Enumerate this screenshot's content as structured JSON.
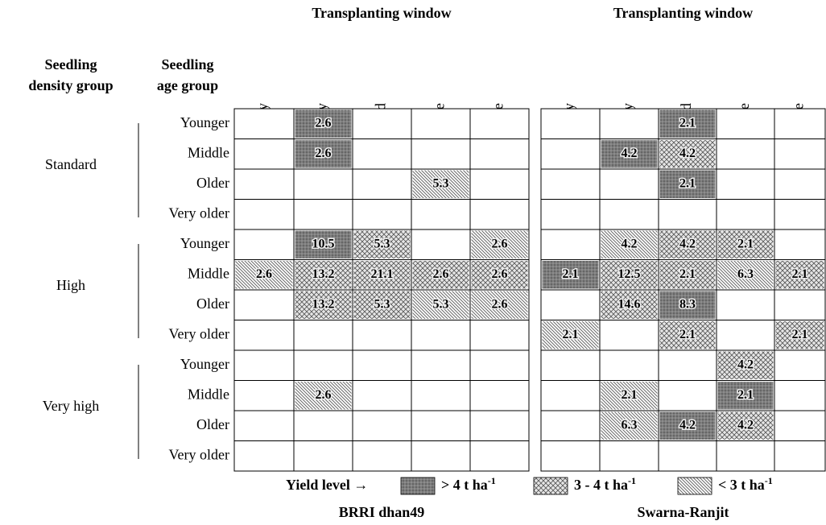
{
  "header": {
    "density_label": [
      "Seedling",
      "density group"
    ],
    "age_label": [
      "Seedling",
      "age group"
    ]
  },
  "groups": [
    {
      "name": "Standard",
      "ages": [
        "Younger",
        "Middle",
        "Older",
        "Very older"
      ]
    },
    {
      "name": "High",
      "ages": [
        "Younger",
        "Middle",
        "Older",
        "Very older"
      ]
    },
    {
      "name": "Very high",
      "ages": [
        "Younger",
        "Middle",
        "Older",
        "Very older"
      ]
    }
  ],
  "tables": [
    {
      "title": "Transplanting window",
      "name": "BRRI dhan49",
      "columns": [
        "Very early",
        "Early",
        "Mid",
        "Late",
        "Very late"
      ],
      "rows": [
        [
          null,
          {
            "text": "2.6",
            "level": 0
          },
          null,
          null,
          null
        ],
        [
          null,
          {
            "text": "2.6",
            "level": 0
          },
          null,
          null,
          null
        ],
        [
          null,
          null,
          null,
          {
            "text": "5.3",
            "level": 2
          },
          null
        ],
        [
          null,
          null,
          null,
          null,
          null
        ],
        [
          null,
          {
            "text": "10.5",
            "level": 0
          },
          {
            "text": "5.3",
            "level": 1
          },
          null,
          {
            "text": "2.6",
            "level": 2
          }
        ],
        [
          {
            "text": "2.6",
            "level": 2
          },
          {
            "text": "13.2",
            "level": 1
          },
          {
            "text": "21.1",
            "level": 1
          },
          {
            "text": "2.6",
            "level": 1
          },
          {
            "text": "2.6",
            "level": 1
          }
        ],
        [
          null,
          {
            "text": "13.2",
            "level": 1
          },
          {
            "text": "5.3",
            "level": 1
          },
          {
            "text": "5.3",
            "level": 2
          },
          {
            "text": "2.6",
            "level": 2
          }
        ],
        [
          null,
          null,
          null,
          null,
          null
        ],
        [
          null,
          null,
          null,
          null,
          null
        ],
        [
          null,
          {
            "text": "2.6",
            "level": 2
          },
          null,
          null,
          null
        ],
        [
          null,
          null,
          null,
          null,
          null
        ],
        [
          null,
          null,
          null,
          null,
          null
        ]
      ]
    },
    {
      "title": "Transplanting window",
      "name": "Swarna-Ranjit",
      "columns": [
        "Very early",
        "Early",
        "Mid",
        "Late",
        "Very late"
      ],
      "rows": [
        [
          null,
          null,
          {
            "text": "2.1",
            "level": 0
          },
          null,
          null
        ],
        [
          null,
          {
            "text": "4.2",
            "level": 0
          },
          {
            "text": "4.2",
            "level": 1
          },
          null,
          null
        ],
        [
          null,
          null,
          {
            "text": "2.1",
            "level": 0
          },
          null,
          null
        ],
        [
          null,
          null,
          null,
          null,
          null
        ],
        [
          null,
          {
            "text": "4.2",
            "level": 2
          },
          {
            "text": "4.2",
            "level": 1
          },
          {
            "text": "2.1",
            "level": 1
          },
          null
        ],
        [
          {
            "text": "2.1",
            "level": 0
          },
          {
            "text": "12.5",
            "level": 1
          },
          {
            "text": "2.1",
            "level": 1
          },
          {
            "text": "6.3",
            "level": 2
          },
          {
            "text": "2.1",
            "level": 1
          }
        ],
        [
          null,
          {
            "text": "14.6",
            "level": 1
          },
          {
            "text": "8.3",
            "level": 0
          },
          null,
          null
        ],
        [
          {
            "text": "2.1",
            "level": 2
          },
          null,
          {
            "text": "2.1",
            "level": 1
          },
          null,
          {
            "text": "2.1",
            "level": 1
          }
        ],
        [
          null,
          null,
          null,
          {
            "text": "4.2",
            "level": 1
          },
          null
        ],
        [
          null,
          {
            "text": "2.1",
            "level": 2
          },
          null,
          {
            "text": "2.1",
            "level": 0
          },
          null
        ],
        [
          null,
          {
            "text": "6.3",
            "level": 2
          },
          {
            "text": "4.2",
            "level": 0
          },
          {
            "text": "4.2",
            "level": 1
          },
          null
        ],
        [
          null,
          null,
          null,
          null,
          null
        ]
      ]
    }
  ],
  "legend": {
    "title": "Yield level →",
    "items": [
      {
        "label": "> 4 t ha",
        "sup": "-1"
      },
      {
        "label": "3 - 4 t ha",
        "sup": "-1"
      },
      {
        "label": "< 3 t ha",
        "sup": "-1"
      }
    ]
  }
}
